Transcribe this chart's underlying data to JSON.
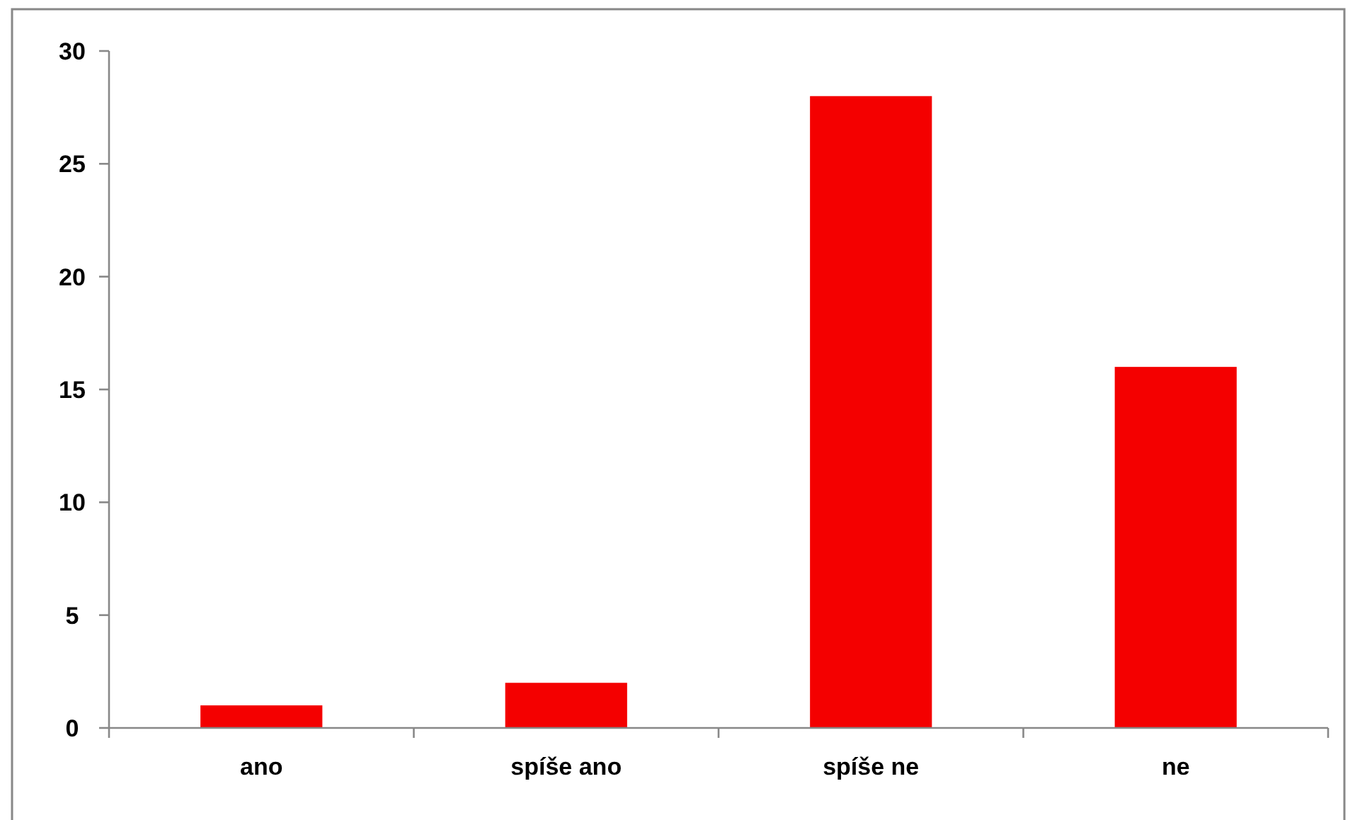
{
  "chart_data": {
    "type": "bar",
    "categories": [
      "ano",
      "spíše ano",
      "spíše ne",
      "ne"
    ],
    "values": [
      1,
      2,
      28,
      16
    ],
    "color": "#f40000",
    "ylim": [
      0,
      30
    ],
    "yticks": [
      0,
      5,
      10,
      15,
      20,
      25,
      30
    ],
    "grid": false
  }
}
